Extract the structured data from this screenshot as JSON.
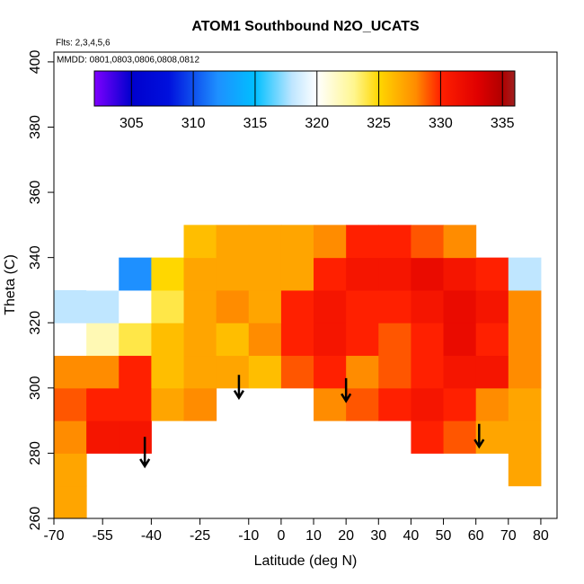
{
  "chart_data": {
    "type": "heatmap",
    "title": "ATOM1 Southbound N2O_UCATS",
    "subtitle": "Flts: 2,3,4,5,6",
    "annotation": "MMDD: 0801,0803,0806,0808,0812",
    "x_label": "Latitude (deg N)",
    "y_label": "Theta (C)",
    "xlim": [
      -70,
      85
    ],
    "ylim": [
      260,
      403
    ],
    "xticks": [
      -70,
      -55,
      -40,
      -25,
      -10,
      0,
      10,
      20,
      30,
      40,
      50,
      60,
      70,
      80
    ],
    "yticks": [
      260,
      280,
      300,
      320,
      340,
      360,
      380,
      400
    ],
    "x_bins": [
      -70,
      -60,
      -50,
      -40,
      -30,
      -20,
      -10,
      0,
      10,
      20,
      30,
      40,
      50,
      60,
      70,
      80
    ],
    "y_bins": [
      260,
      270,
      280,
      290,
      300,
      310,
      320,
      330,
      340,
      350
    ],
    "values": [
      [
        327,
        null,
        null,
        null,
        null,
        null,
        null,
        null,
        null,
        null,
        null,
        null,
        null,
        null,
        null
      ],
      [
        327,
        null,
        null,
        null,
        null,
        null,
        null,
        null,
        null,
        null,
        null,
        null,
        null,
        null,
        327
      ],
      [
        328,
        331,
        331,
        null,
        null,
        null,
        null,
        null,
        null,
        null,
        null,
        330,
        329,
        327,
        327
      ],
      [
        329,
        330,
        330,
        327,
        328,
        null,
        null,
        null,
        328,
        329,
        330,
        331,
        330,
        328,
        327
      ],
      [
        328,
        328,
        330,
        326,
        327,
        327,
        326,
        329,
        330,
        328,
        329,
        330,
        331,
        331,
        328
      ],
      [
        320,
        322,
        324,
        326,
        327,
        326,
        328,
        330,
        331,
        330,
        329,
        330,
        332,
        330,
        328
      ],
      [
        318,
        318,
        320,
        324,
        327,
        328,
        327,
        330,
        331,
        330,
        330,
        331,
        332,
        331,
        328
      ],
      [
        null,
        320,
        312,
        325,
        327,
        327,
        327,
        327,
        330,
        331,
        331,
        332,
        331,
        330,
        318
      ],
      [
        null,
        null,
        null,
        null,
        326,
        327,
        327,
        327,
        328,
        330,
        330,
        329,
        328,
        null,
        null
      ]
    ],
    "colorbar_lim": [
      302,
      336
    ],
    "colorbar_ticks": [
      305,
      310,
      315,
      320,
      325,
      330,
      335
    ],
    "colorscale": [
      [
        302,
        "#7f00ff"
      ],
      [
        305,
        "#0000cd"
      ],
      [
        308,
        "#0010dd"
      ],
      [
        312,
        "#1e90ff"
      ],
      [
        315,
        "#00bfff"
      ],
      [
        318,
        "#bfe6ff"
      ],
      [
        320,
        "#ffffff"
      ],
      [
        323,
        "#fff68f"
      ],
      [
        325,
        "#ffd700"
      ],
      [
        328,
        "#ff8c00"
      ],
      [
        330,
        "#ff2000"
      ],
      [
        333,
        "#e00000"
      ],
      [
        335,
        "#b00000"
      ],
      [
        336,
        "#a02020"
      ]
    ],
    "arrows": [
      -42,
      -13,
      20,
      61
    ],
    "arrow_tops": [
      285,
      304,
      303,
      289
    ],
    "arrow_tips": [
      276,
      297,
      296,
      282
    ]
  }
}
